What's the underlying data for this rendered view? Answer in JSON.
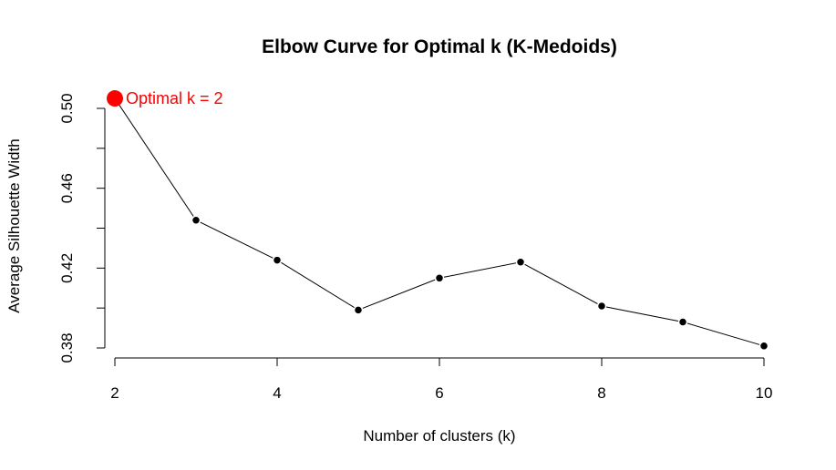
{
  "chart_data": {
    "type": "line",
    "title": "Elbow Curve for Optimal k (K-Medoids)",
    "xlabel": "Number of clusters (k)",
    "ylabel": "Average Silhouette Width",
    "x": [
      2,
      3,
      4,
      5,
      6,
      7,
      8,
      9,
      10
    ],
    "y": [
      0.505,
      0.444,
      0.424,
      0.399,
      0.415,
      0.423,
      0.401,
      0.393,
      0.381
    ],
    "xlim": [
      2,
      10
    ],
    "ylim": [
      0.38,
      0.5
    ],
    "xticks": [
      "2",
      "4",
      "6",
      "8",
      "10"
    ],
    "yticks": [
      "0.38",
      "0.42",
      "0.46",
      "0.50"
    ],
    "grid": false,
    "highlight": {
      "x": 2,
      "y": 0.505,
      "label": "Optimal k = 2",
      "color": "#ff0000"
    },
    "point_color": "#000000"
  }
}
